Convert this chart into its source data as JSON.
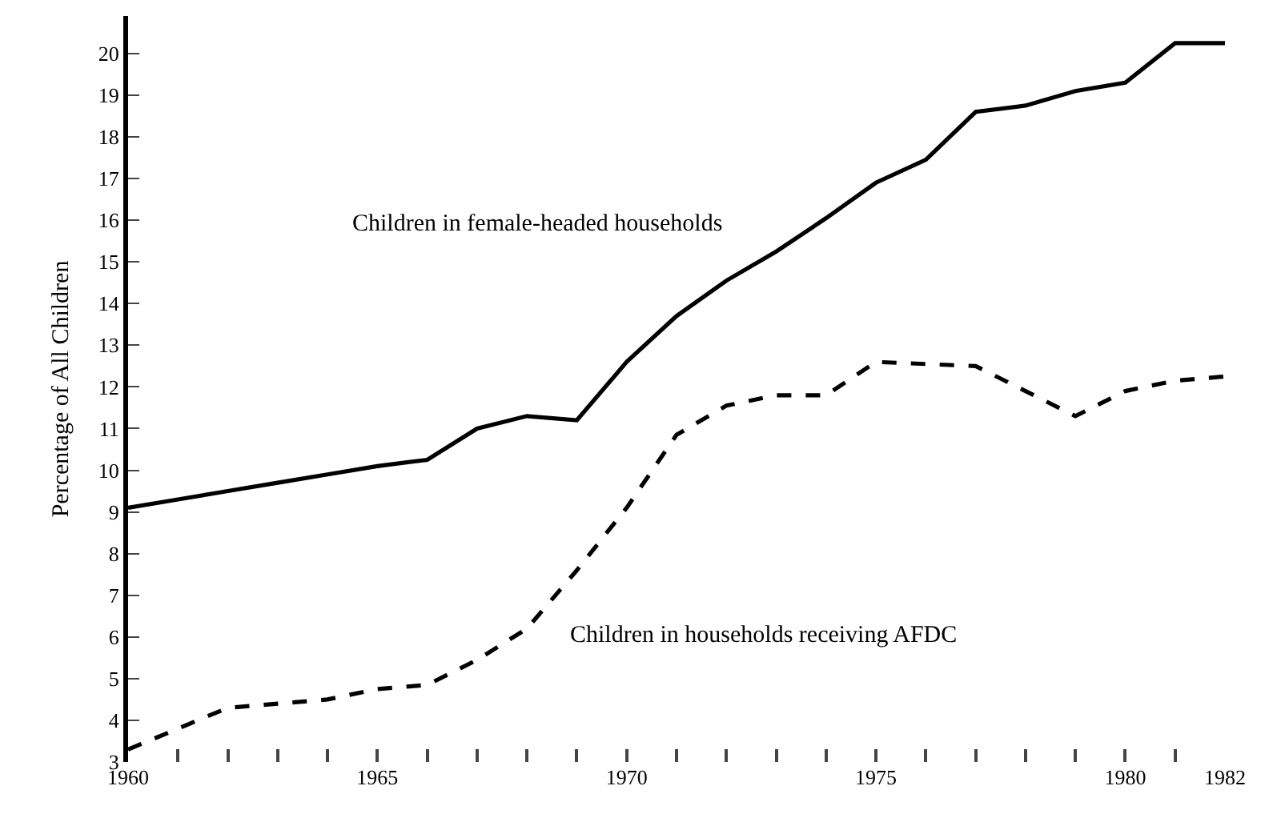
{
  "chart_data": {
    "type": "line",
    "ylabel": "Percentage of All Children",
    "x": [
      1960,
      1961,
      1962,
      1963,
      1964,
      1965,
      1966,
      1967,
      1968,
      1969,
      1970,
      1971,
      1972,
      1973,
      1974,
      1975,
      1976,
      1977,
      1978,
      1979,
      1980,
      1981,
      1982
    ],
    "series": [
      {
        "name": "Children in female-headed households",
        "color": "#000000",
        "line_style": "solid",
        "values": [
          9.1,
          9.3,
          9.5,
          9.7,
          9.9,
          10.1,
          10.25,
          11.0,
          11.3,
          11.2,
          12.6,
          13.7,
          14.55,
          15.25,
          16.05,
          16.9,
          17.45,
          18.6,
          18.75,
          19.1,
          19.3,
          20.25,
          20.25
        ]
      },
      {
        "name": "Children in households receiving AFDC",
        "color": "#000000",
        "line_style": "dashed",
        "values": [
          3.3,
          3.8,
          4.3,
          4.4,
          4.5,
          4.75,
          4.85,
          5.45,
          6.2,
          7.6,
          9.1,
          10.85,
          11.55,
          11.8,
          11.8,
          12.6,
          12.55,
          12.5,
          11.9,
          11.3,
          11.9,
          12.15,
          12.25
        ]
      }
    ],
    "xlim": [
      1960,
      1982
    ],
    "xticks": [
      1960,
      {
        "value": 1961,
        "label": null
      },
      {
        "value": 1962,
        "label": null
      },
      {
        "value": 1963,
        "label": null
      },
      {
        "value": 1964,
        "label": null
      },
      1965,
      {
        "value": 1966,
        "label": null
      },
      {
        "value": 1967,
        "label": null
      },
      {
        "value": 1968,
        "label": null
      },
      {
        "value": 1969,
        "label": null
      },
      1970,
      {
        "value": 1971,
        "label": null
      },
      {
        "value": 1972,
        "label": null
      },
      {
        "value": 1973,
        "label": null
      },
      {
        "value": 1974,
        "label": null
      },
      1975,
      {
        "value": 1976,
        "label": null
      },
      {
        "value": 1977,
        "label": null
      },
      {
        "value": 1978,
        "label": null
      },
      {
        "value": 1979,
        "label": null
      },
      1980,
      {
        "value": 1981,
        "label": null
      },
      1982
    ],
    "ylim": [
      3,
      20.9
    ],
    "yticks": [
      3,
      4,
      5,
      6,
      7,
      8,
      9,
      10,
      11,
      12,
      13,
      14,
      15,
      16,
      17,
      18,
      19,
      20
    ],
    "legend": false,
    "marker": "none"
  }
}
